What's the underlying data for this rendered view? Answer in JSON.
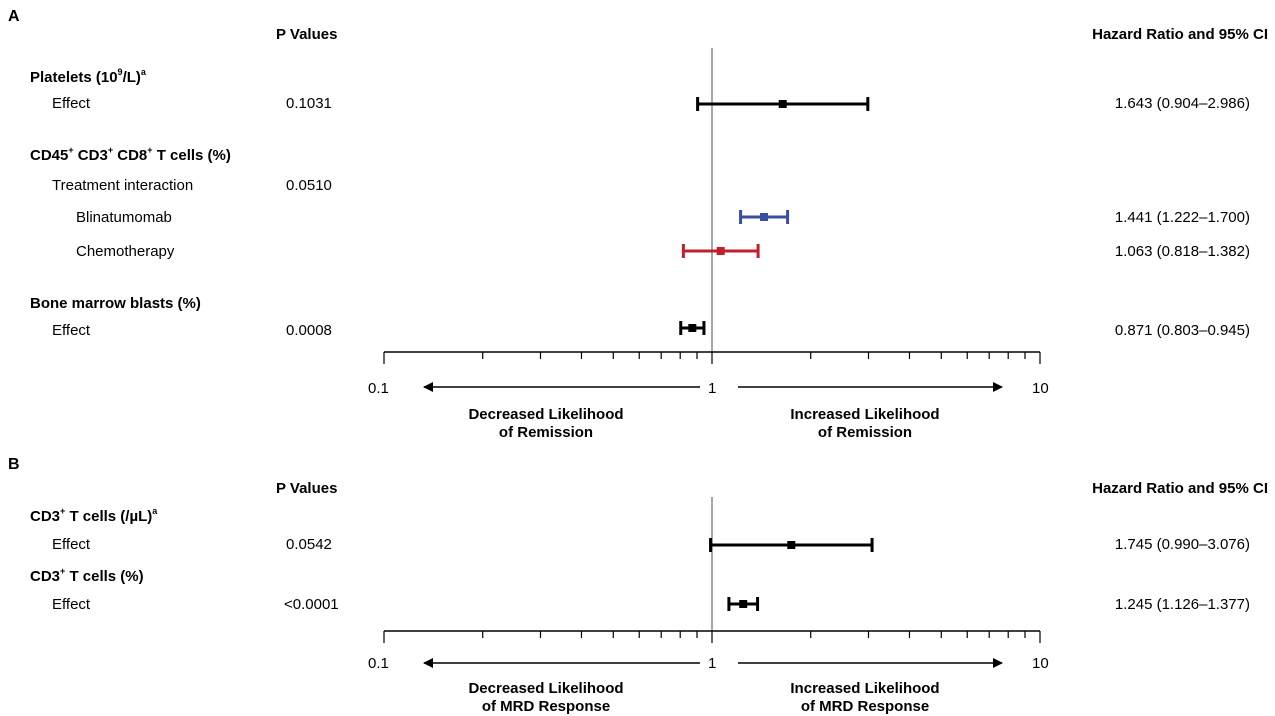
{
  "chart_data": [
    {
      "type": "forest",
      "panel": "A",
      "col_pvalues": "P Values",
      "col_hr": "Hazard Ratio and 95% CI",
      "xscale": "log",
      "xlim": [
        0.1,
        10
      ],
      "ticks": [
        "0.1",
        "1",
        "10"
      ],
      "left_label": [
        "Decreased Likelihood",
        "of Remission"
      ],
      "right_label": [
        "Increased Likelihood",
        "of Remission"
      ],
      "rows": [
        {
          "kind": "header",
          "label": "Platelets (10",
          "sup1": "9",
          "mid": "/L)",
          "sup2": "a"
        },
        {
          "kind": "data",
          "label": "Effect",
          "indent": 1,
          "p": "0.1031",
          "hr": 1.643,
          "lo": 0.904,
          "hi": 2.986,
          "text": "1.643 (0.904–2.986)",
          "color": "#000000"
        },
        {
          "kind": "header",
          "label": "CD45",
          "parts": [
            "CD45",
            "+",
            " CD3",
            "+",
            " CD8",
            "+",
            " T cells (%)"
          ]
        },
        {
          "kind": "label",
          "label": "Treatment interaction",
          "indent": 1,
          "p": "0.0510"
        },
        {
          "kind": "data",
          "label": "Blinatumomab",
          "indent": 2,
          "p": "",
          "hr": 1.441,
          "lo": 1.222,
          "hi": 1.7,
          "text": "1.441 (1.222–1.700)",
          "color": "#3a4ea0"
        },
        {
          "kind": "data",
          "label": "Chemotherapy",
          "indent": 2,
          "p": "",
          "hr": 1.063,
          "lo": 0.818,
          "hi": 1.382,
          "text": "1.063 (0.818–1.382)",
          "color": "#c0202e"
        },
        {
          "kind": "header",
          "label": "Bone marrow blasts (%)"
        },
        {
          "kind": "data",
          "label": "Effect",
          "indent": 1,
          "p": "0.0008",
          "hr": 0.871,
          "lo": 0.803,
          "hi": 0.945,
          "text": "0.871 (0.803–0.945)",
          "color": "#000000"
        }
      ]
    },
    {
      "type": "forest",
      "panel": "B",
      "col_pvalues": "P Values",
      "col_hr": "Hazard Ratio and 95% CI",
      "xscale": "log",
      "xlim": [
        0.1,
        10
      ],
      "ticks": [
        "0.1",
        "1",
        "10"
      ],
      "left_label": [
        "Decreased Likelihood",
        "of MRD Response"
      ],
      "right_label": [
        "Increased Likelihood",
        "of MRD Response"
      ],
      "rows": [
        {
          "kind": "header",
          "label": "CD3",
          "parts": [
            "CD3",
            "+",
            " T cells (/µL)",
            "a"
          ]
        },
        {
          "kind": "data",
          "label": "Effect",
          "indent": 1,
          "p": "0.0542",
          "hr": 1.745,
          "lo": 0.99,
          "hi": 3.076,
          "text": "1.745 (0.990–3.076)",
          "color": "#000000"
        },
        {
          "kind": "header",
          "label": "CD3",
          "parts": [
            "CD3",
            "+",
            " T cells (%)"
          ]
        },
        {
          "kind": "data",
          "label": "Effect",
          "indent": 1,
          "p": "<0.0001",
          "hr": 1.245,
          "lo": 1.126,
          "hi": 1.377,
          "text": "1.245 (1.126–1.377)",
          "color": "#000000"
        }
      ]
    }
  ]
}
